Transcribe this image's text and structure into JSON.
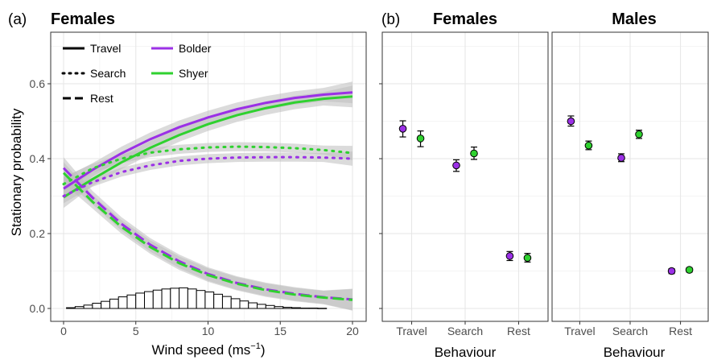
{
  "panels": {
    "a": {
      "label": "(a)",
      "title": "Females"
    },
    "b": {
      "label": "(b)",
      "titles": [
        "Females",
        "Males"
      ]
    }
  },
  "legend": {
    "linetypes": [
      "Travel",
      "Search",
      "Rest"
    ],
    "groups": [
      "Bolder",
      "Shyer"
    ]
  },
  "colors": {
    "bolder": "#9b30e6",
    "shyer": "#2fd12f",
    "ribbon": "#bdbdbd",
    "grid": "#e6e6e6"
  },
  "chart_data": [
    {
      "type": "line",
      "panel": "a",
      "xlabel": "Wind speed (ms",
      "xlabel_sup": "−1",
      "ylabel": "Stationary probability",
      "xlim": [
        0,
        20
      ],
      "ylim": [
        -0.03,
        0.72
      ],
      "xticks": [
        0,
        5,
        10,
        15,
        20
      ],
      "yticks": [
        0.0,
        0.2,
        0.4,
        0.6
      ],
      "ytick_labels": [
        "0.0",
        "0.2",
        "0.4",
        "0.6"
      ],
      "x": [
        0,
        2,
        4,
        6,
        8,
        10,
        12,
        14,
        16,
        18,
        20
      ],
      "series": [
        {
          "name": "Travel",
          "group": "Bolder",
          "linetype": "solid",
          "values": [
            0.32,
            0.37,
            0.414,
            0.452,
            0.484,
            0.51,
            0.532,
            0.549,
            0.562,
            0.571,
            0.577
          ]
        },
        {
          "name": "Travel",
          "group": "Shyer",
          "linetype": "solid",
          "values": [
            0.297,
            0.345,
            0.39,
            0.429,
            0.463,
            0.492,
            0.516,
            0.535,
            0.55,
            0.56,
            0.566
          ]
        },
        {
          "name": "Search",
          "group": "Bolder",
          "linetype": "dotted",
          "values": [
            0.3,
            0.337,
            0.364,
            0.382,
            0.394,
            0.4,
            0.403,
            0.404,
            0.404,
            0.403,
            0.4
          ]
        },
        {
          "name": "Search",
          "group": "Shyer",
          "linetype": "dotted",
          "values": [
            0.332,
            0.374,
            0.4,
            0.416,
            0.425,
            0.43,
            0.432,
            0.431,
            0.428,
            0.423,
            0.415
          ]
        },
        {
          "name": "Rest",
          "group": "Bolder",
          "linetype": "dashed",
          "values": [
            0.375,
            0.296,
            0.226,
            0.17,
            0.126,
            0.092,
            0.068,
            0.051,
            0.039,
            0.03,
            0.024
          ]
        },
        {
          "name": "Rest",
          "group": "Shyer",
          "linetype": "dashed",
          "values": [
            0.362,
            0.285,
            0.218,
            0.164,
            0.121,
            0.089,
            0.066,
            0.049,
            0.037,
            0.029,
            0.023
          ]
        }
      ],
      "histogram": {
        "bin_width": 0.6,
        "bin_starts": [
          0.2,
          0.8,
          1.4,
          2.0,
          2.6,
          3.2,
          3.8,
          4.4,
          5.0,
          5.6,
          6.2,
          6.8,
          7.4,
          8.0,
          8.6,
          9.2,
          9.8,
          10.4,
          11.0,
          11.6,
          12.2,
          12.8,
          13.4,
          14.0,
          14.6,
          15.2,
          15.8,
          16.4,
          17.0,
          17.6
        ],
        "heights": [
          0.002,
          0.005,
          0.009,
          0.014,
          0.019,
          0.025,
          0.031,
          0.036,
          0.041,
          0.045,
          0.049,
          0.052,
          0.054,
          0.055,
          0.052,
          0.048,
          0.044,
          0.038,
          0.032,
          0.026,
          0.02,
          0.015,
          0.011,
          0.008,
          0.005,
          0.003,
          0.002,
          0.001,
          0.001,
          0.0005
        ]
      }
    },
    {
      "type": "scatter",
      "panel": "b-females",
      "title": "Females",
      "xlabel": "Behaviour",
      "categories": [
        "Travel",
        "Search",
        "Rest"
      ],
      "ylim": [
        -0.03,
        0.72
      ],
      "series": [
        {
          "name": "Bolder",
          "values": [
            0.48,
            0.382,
            0.14
          ],
          "lower": [
            0.458,
            0.366,
            0.128
          ],
          "upper": [
            0.501,
            0.397,
            0.152
          ]
        },
        {
          "name": "Shyer",
          "values": [
            0.454,
            0.414,
            0.135
          ],
          "lower": [
            0.432,
            0.398,
            0.124
          ],
          "upper": [
            0.474,
            0.431,
            0.147
          ]
        }
      ]
    },
    {
      "type": "scatter",
      "panel": "b-males",
      "title": "Males",
      "xlabel": "Behaviour",
      "categories": [
        "Travel",
        "Search",
        "Rest"
      ],
      "ylim": [
        -0.03,
        0.72
      ],
      "series": [
        {
          "name": "Bolder",
          "values": [
            0.5,
            0.402,
            0.1
          ],
          "lower": [
            0.487,
            0.392,
            0.093
          ],
          "upper": [
            0.514,
            0.413,
            0.106
          ]
        },
        {
          "name": "Shyer",
          "values": [
            0.435,
            0.465,
            0.103
          ],
          "lower": [
            0.424,
            0.454,
            0.097
          ],
          "upper": [
            0.447,
            0.476,
            0.109
          ]
        }
      ]
    }
  ]
}
